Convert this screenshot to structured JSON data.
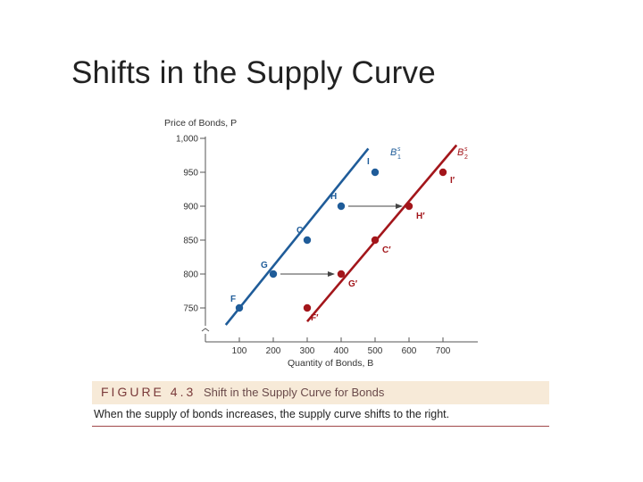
{
  "slide": {
    "title": "Shifts in the Supply Curve"
  },
  "figure": {
    "label": "FIGURE 4.3",
    "title": "Shift in the Supply Curve for Bonds",
    "caption": "When the supply of bonds increases, the supply curve shifts to the right."
  },
  "colors": {
    "s1": "#1f5c99",
    "s2": "#a3161b",
    "axis": "#555555",
    "arrow": "#444444"
  },
  "chart_data": {
    "type": "line",
    "ylabel": "Price of Bonds, P",
    "xlabel": "Quantity of Bonds, B",
    "xlim": [
      0,
      800
    ],
    "ylim": [
      725,
      1000
    ],
    "x_ticks": [
      {
        "value": 100,
        "label": "100"
      },
      {
        "value": 200,
        "label": "200"
      },
      {
        "value": 300,
        "label": "300"
      },
      {
        "value": 400,
        "label": "400"
      },
      {
        "value": 500,
        "label": "500"
      },
      {
        "value": 600,
        "label": "600"
      },
      {
        "value": 700,
        "label": "700"
      }
    ],
    "y_ticks": [
      {
        "value": 750,
        "label": "750"
      },
      {
        "value": 800,
        "label": "800"
      },
      {
        "value": 850,
        "label": "850"
      },
      {
        "value": 900,
        "label": "900"
      },
      {
        "value": 950,
        "label": "950"
      },
      {
        "value": 1000,
        "label": "1,000"
      }
    ],
    "series": [
      {
        "label_main": "B",
        "label_sup": "s",
        "label_sub": "1",
        "color_key": "s1",
        "line": [
          [
            60,
            725
          ],
          [
            480,
            985
          ]
        ],
        "points": [
          {
            "name": "F",
            "x": 100,
            "y": 750
          },
          {
            "name": "G",
            "x": 200,
            "y": 800
          },
          {
            "name": "C",
            "x": 300,
            "y": 850
          },
          {
            "name": "H",
            "x": 400,
            "y": 900
          },
          {
            "name": "I",
            "x": 500,
            "y": 950
          }
        ]
      },
      {
        "label_main": "B",
        "label_sup": "s",
        "label_sub": "2",
        "color_key": "s2",
        "line": [
          [
            300,
            730
          ],
          [
            740,
            990
          ]
        ],
        "points": [
          {
            "name": "F′",
            "x": 300,
            "y": 750
          },
          {
            "name": "G′",
            "x": 400,
            "y": 800
          },
          {
            "name": "C′",
            "x": 500,
            "y": 850
          },
          {
            "name": "H′",
            "x": 600,
            "y": 900
          },
          {
            "name": "I′",
            "x": 700,
            "y": 950
          }
        ]
      }
    ],
    "annotations": [
      {
        "from": [
          200,
          800
        ],
        "to": [
          400,
          800
        ]
      },
      {
        "from": [
          400,
          900
        ],
        "to": [
          600,
          900
        ]
      }
    ]
  }
}
